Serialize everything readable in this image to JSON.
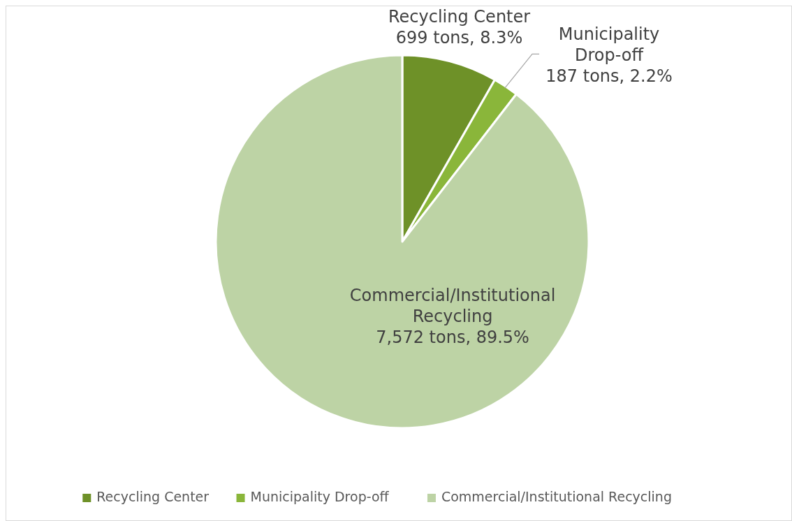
{
  "chart_data": {
    "type": "pie",
    "categories": [
      "Recycling Center",
      "Municipality Drop-off",
      "Commercial/Institutional Recycling"
    ],
    "values": [
      699,
      187,
      7572
    ],
    "colors": [
      "#6e9128",
      "#8ab63a",
      "#bdd3a5"
    ],
    "value_labels": [
      "699 tons, 8.3%",
      "187 tons, 2.2%",
      "7,572 tons, 89.5%"
    ],
    "legend": "bottom"
  }
}
